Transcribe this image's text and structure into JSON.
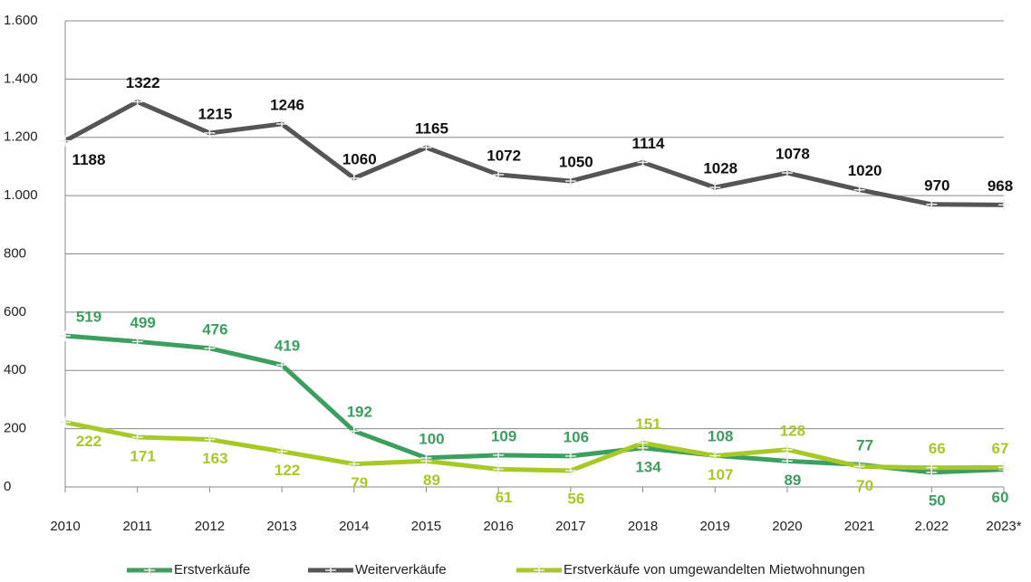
{
  "chart_data": {
    "type": "line",
    "categories": [
      "2010",
      "2011",
      "2012",
      "2013",
      "2014",
      "2015",
      "2016",
      "2017",
      "2018",
      "2019",
      "2020",
      "2021",
      "2.022",
      "2023*"
    ],
    "series": [
      {
        "name": "Erstverkäufe",
        "color": "#3c9e5f",
        "values": [
          519,
          499,
          476,
          419,
          192,
          100,
          109,
          106,
          134,
          108,
          89,
          77,
          50,
          60
        ]
      },
      {
        "name": "Weiterverkäufe",
        "color": "#555555",
        "values": [
          1188,
          1322,
          1215,
          1246,
          1060,
          1165,
          1072,
          1050,
          1114,
          1028,
          1078,
          1020,
          970,
          968
        ]
      },
      {
        "name": "Erstverkäufe von umgewandelten Mietwohnungen",
        "color": "#a6c928",
        "values": [
          222,
          171,
          163,
          122,
          79,
          89,
          61,
          56,
          151,
          107,
          128,
          70,
          66,
          67
        ]
      }
    ],
    "ylim": [
      0,
      1600
    ],
    "yticks": [
      0,
      200,
      400,
      600,
      800,
      {
        "value": 1000,
        "label": "1.000"
      },
      {
        "value": 1200,
        "label": "1.200"
      },
      {
        "value": 1400,
        "label": "1.400"
      },
      {
        "value": 1600,
        "label": "1.600"
      }
    ],
    "grid": true,
    "legend": "bottom"
  }
}
